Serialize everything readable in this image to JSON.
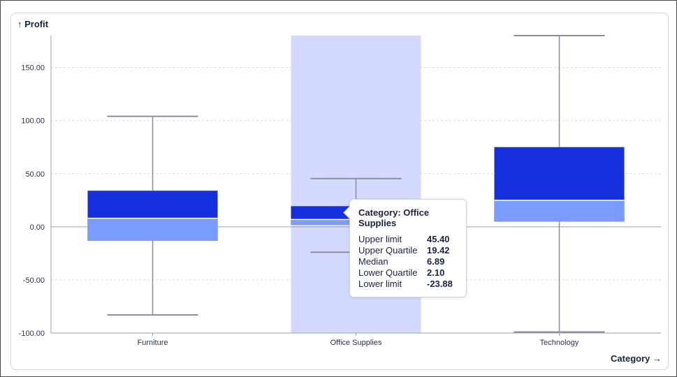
{
  "colors": {
    "upper_box": "#1530dc",
    "lower_box": "#7a9bff",
    "highlight_band": "#d4daff",
    "whisker": "#8a8ca0",
    "grid": "#d8dae0",
    "zero_line": "#9a9cab"
  },
  "chart_data": {
    "type": "box",
    "ylabel": "Profit",
    "xlabel": "Category",
    "ylim": [
      -100,
      180
    ],
    "yticks": [
      -100,
      -50,
      0,
      50,
      100,
      150
    ],
    "ytick_labels": [
      "-100.00",
      "-50.00",
      "0.00",
      "50.00",
      "100.00",
      "150.00"
    ],
    "grid": true,
    "highlighted_category": "Office Supplies",
    "categories": [
      "Furniture",
      "Office Supplies",
      "Technology"
    ],
    "boxes": [
      {
        "category": "Furniture",
        "lower_limit": -83,
        "lower_quartile": -13,
        "median": 8,
        "upper_quartile": 34,
        "upper_limit": 104
      },
      {
        "category": "Office Supplies",
        "lower_limit": -23.88,
        "lower_quartile": 2.1,
        "median": 6.89,
        "upper_quartile": 19.42,
        "upper_limit": 45.4
      },
      {
        "category": "Technology",
        "lower_limit": -99,
        "lower_quartile": 5,
        "median": 25,
        "upper_quartile": 75,
        "upper_limit": 180
      }
    ]
  },
  "axis": {
    "y_title": "↑ Profit",
    "x_title": "Category →"
  },
  "tooltip": {
    "title": "Category: Office Supplies",
    "rows": [
      {
        "label": "Upper limit",
        "value": "45.40"
      },
      {
        "label": "Upper Quartile",
        "value": "19.42"
      },
      {
        "label": "Median",
        "value": "6.89"
      },
      {
        "label": "Lower Quartile",
        "value": "2.10"
      },
      {
        "label": "Lower limit",
        "value": "-23.88"
      }
    ]
  }
}
